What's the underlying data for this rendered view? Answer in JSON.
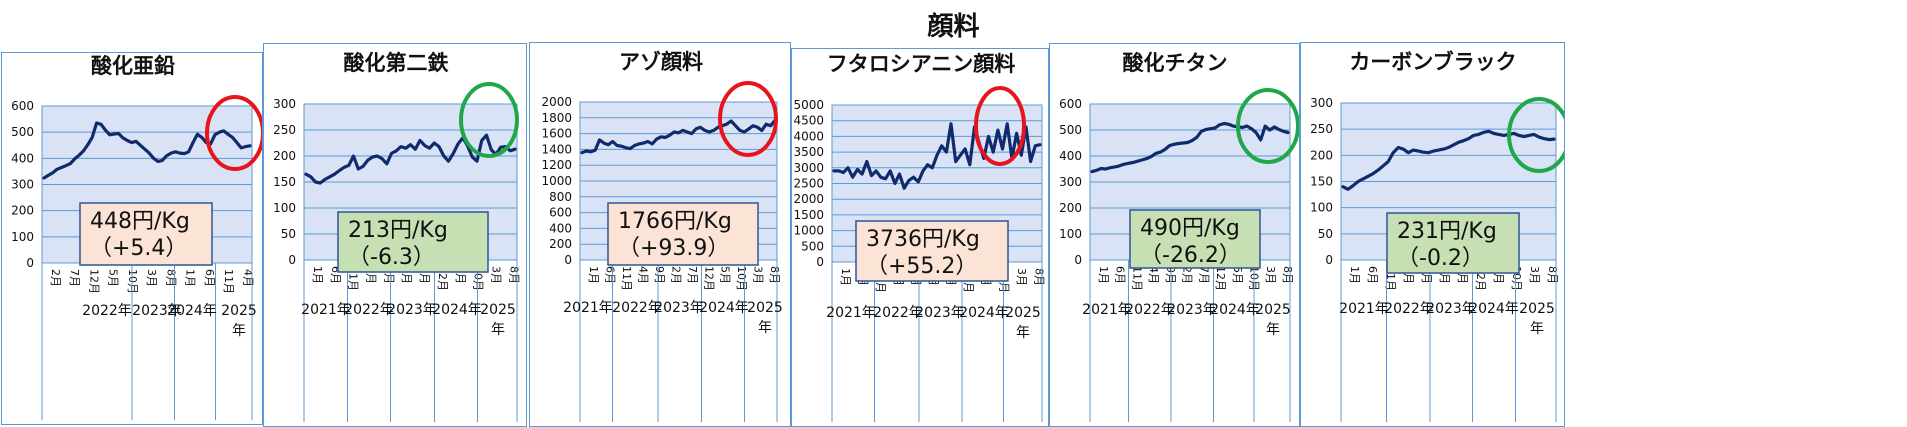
{
  "title": "顔料",
  "colors": {
    "plot_bg": "#d9e3f5",
    "grid": "#5b9bd5",
    "line": "#0f2b6b",
    "red_circle": "#e8141c",
    "green_circle": "#1fa84a",
    "up_box": "#fbe4d5",
    "down_box": "#c6e0b4",
    "box_border": "#2f5597"
  },
  "chart_data": [
    {
      "type": "line",
      "title": "酸化亜鉛",
      "ylim": [
        0,
        600
      ],
      "ystep": 100,
      "y_ticks": [
        "0",
        "100",
        "200",
        "300",
        "400",
        "500",
        "600"
      ],
      "x_ticks": [
        "2月",
        "7月",
        "12月",
        "5月",
        "10月",
        "3月",
        "8月",
        "1月",
        "6月",
        "11月",
        "4月"
      ],
      "years": [
        "2022年",
        "2023年",
        "2024年",
        "2025\n年"
      ],
      "values": [
        325,
        335,
        345,
        358,
        365,
        372,
        380,
        398,
        412,
        428,
        452,
        480,
        535,
        530,
        508,
        490,
        493,
        495,
        478,
        468,
        460,
        465,
        450,
        435,
        420,
        400,
        388,
        392,
        410,
        420,
        425,
        420,
        418,
        425,
        460,
        492,
        480,
        460,
        455,
        490,
        500,
        505,
        492,
        480,
        460,
        440,
        445,
        448
      ],
      "price": "448円/Kg",
      "change": "（+5.4）",
      "trend": "up",
      "circle": "red"
    },
    {
      "type": "line",
      "title": "酸化第二鉄",
      "ylim": [
        0,
        300
      ],
      "ystep": 50,
      "y_ticks": [
        "0",
        "50",
        "100",
        "150",
        "200",
        "250",
        "300"
      ],
      "x_ticks": [
        "1月",
        "6月",
        "11月",
        "4月",
        "9月",
        "2月",
        "7月",
        "12月",
        "5月",
        "10月",
        "3月",
        "8月"
      ],
      "years": [
        "2021年",
        "2022年",
        "2023年",
        "2024年",
        "2025\n年"
      ],
      "values": [
        165,
        160,
        150,
        148,
        155,
        160,
        165,
        172,
        178,
        182,
        200,
        175,
        180,
        192,
        198,
        200,
        195,
        185,
        205,
        210,
        218,
        215,
        222,
        213,
        230,
        220,
        215,
        225,
        218,
        200,
        190,
        205,
        223,
        235,
        220,
        198,
        190,
        230,
        240,
        212,
        203,
        217,
        218,
        210,
        213
      ],
      "price": "213円/Kg",
      "change": "（-6.3）",
      "trend": "down",
      "circle": "green"
    },
    {
      "type": "line",
      "title": "アゾ顔料",
      "ylim": [
        0,
        2000
      ],
      "ystep": 200,
      "y_ticks": [
        "0",
        "200",
        "400",
        "600",
        "800",
        "1000",
        "1200",
        "1400",
        "1600",
        "1800",
        "2000"
      ],
      "x_ticks": [
        "1月",
        "6月",
        "11月",
        "4月",
        "9月",
        "2月",
        "7月",
        "12月",
        "5月",
        "10月",
        "3月",
        "8月"
      ],
      "years": [
        "2021年",
        "2022年",
        "2023年",
        "2024年",
        "2025\n年"
      ],
      "values": [
        1360,
        1380,
        1370,
        1390,
        1520,
        1480,
        1460,
        1500,
        1450,
        1440,
        1420,
        1410,
        1450,
        1470,
        1480,
        1500,
        1470,
        1530,
        1560,
        1550,
        1580,
        1620,
        1610,
        1640,
        1620,
        1600,
        1660,
        1680,
        1640,
        1620,
        1640,
        1680,
        1700,
        1720,
        1760,
        1700,
        1640,
        1620,
        1660,
        1700,
        1680,
        1640,
        1720,
        1700,
        1766
      ],
      "price": "1766円/Kg",
      "change": "（+93.9）",
      "trend": "up",
      "circle": "red"
    },
    {
      "type": "line",
      "title": "フタロシアニン顔料",
      "ylim": [
        0,
        5000
      ],
      "ystep": 500,
      "y_ticks": [
        "0",
        "500",
        "1000",
        "1500",
        "2000",
        "2500",
        "3000",
        "3500",
        "4000",
        "4500",
        "5000"
      ],
      "x_ticks": [
        "1月",
        "6月",
        "11月",
        "4月",
        "9月",
        "2月",
        "7月",
        "12月",
        "5月",
        "10月",
        "3月",
        "8月"
      ],
      "years": [
        "2021年",
        "2022年",
        "2023年",
        "2024年",
        "2025\n年"
      ],
      "values": [
        2900,
        2900,
        2850,
        3000,
        2700,
        2950,
        2800,
        3200,
        2750,
        2900,
        2700,
        2650,
        2900,
        2500,
        2800,
        2350,
        2600,
        2700,
        2550,
        2900,
        3100,
        3000,
        3400,
        3700,
        3500,
        4400,
        3200,
        3400,
        3600,
        3100,
        4300,
        3800,
        3300,
        4000,
        3500,
        4200,
        3600,
        4400,
        3300,
        4100,
        3400,
        4300,
        3200,
        3700,
        3736
      ],
      "price": "3736円/Kg",
      "change": "（+55.2）",
      "trend": "up",
      "circle": "red"
    },
    {
      "type": "line",
      "title": "酸化チタン",
      "ylim": [
        0,
        600
      ],
      "ystep": 100,
      "y_ticks": [
        "0",
        "100",
        "200",
        "300",
        "400",
        "500",
        "600"
      ],
      "x_ticks": [
        "1月",
        "6月",
        "11月",
        "4月",
        "9月",
        "2月",
        "7月",
        "12月",
        "5月",
        "10月",
        "3月",
        "8月"
      ],
      "years": [
        "2021年",
        "2022年",
        "2023年",
        "2024年",
        "2025\n年"
      ],
      "values": [
        340,
        345,
        352,
        350,
        355,
        358,
        362,
        368,
        372,
        375,
        380,
        385,
        390,
        398,
        410,
        415,
        425,
        440,
        445,
        448,
        450,
        452,
        460,
        472,
        495,
        502,
        505,
        508,
        520,
        525,
        522,
        515,
        512,
        510,
        515,
        505,
        490,
        462,
        515,
        500,
        512,
        502,
        495,
        490
      ],
      "price": "490円/Kg",
      "change": "（-26.2）",
      "trend": "down",
      "circle": "green"
    },
    {
      "type": "line",
      "title": "カーボンブラック",
      "ylim": [
        0,
        300
      ],
      "ystep": 50,
      "y_ticks": [
        "0",
        "50",
        "100",
        "150",
        "200",
        "250",
        "300"
      ],
      "x_ticks": [
        "1月",
        "6月",
        "11月",
        "4月",
        "9月",
        "2月",
        "7月",
        "12月",
        "5月",
        "10月",
        "3月",
        "8月"
      ],
      "years": [
        "2021年",
        "2022年",
        "2023年",
        "2024年",
        "2025\n年"
      ],
      "values": [
        140,
        135,
        142,
        150,
        155,
        160,
        165,
        172,
        180,
        188,
        205,
        215,
        212,
        205,
        210,
        208,
        206,
        205,
        208,
        210,
        212,
        215,
        220,
        225,
        228,
        232,
        238,
        240,
        244,
        246,
        242,
        240,
        238,
        240,
        242,
        238,
        236,
        238,
        240,
        235,
        232,
        230,
        231
      ],
      "price": "231円/Kg",
      "change": "（-0.2）",
      "trend": "down",
      "circle": "green"
    }
  ]
}
